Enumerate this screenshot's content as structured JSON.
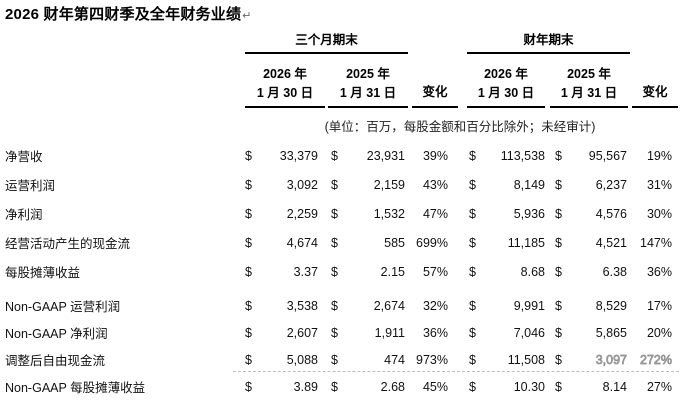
{
  "title": {
    "text": "2026 财年第四财季及全年财务业绩",
    "paragraph_mark": "↵"
  },
  "table": {
    "currency_symbol": "$",
    "header": {
      "group_quarter": "三个月期末",
      "group_fiscal_year": "财年期末",
      "col_q_2026": {
        "year": "2026 年",
        "date": "1 月 30 日"
      },
      "col_q_2025": {
        "year": "2025 年",
        "date": "1 月 31 日"
      },
      "col_fy_2026": {
        "year": "2026 年",
        "date": "1 月 30 日"
      },
      "col_fy_2025": {
        "year": "2025 年",
        "date": "1 月 31 日"
      },
      "change_label": "变化",
      "note": "(单位：百万，每股金额和百分比除外；未经审计)"
    },
    "rows": [
      {
        "label": "净营收",
        "q_2026": "33,379",
        "q_2025": "23,931",
        "q_change": "39%",
        "fy_2026": "113,538",
        "fy_2025": "95,567",
        "fy_change": "19%",
        "section": "gaap"
      },
      {
        "label": "运营利润",
        "q_2026": "3,092",
        "q_2025": "2,159",
        "q_change": "43%",
        "fy_2026": "8,149",
        "fy_2025": "6,237",
        "fy_change": "31%",
        "section": "gaap"
      },
      {
        "label": "净利润",
        "q_2026": "2,259",
        "q_2025": "1,532",
        "q_change": "47%",
        "fy_2026": "5,936",
        "fy_2025": "4,576",
        "fy_change": "30%",
        "section": "gaap"
      },
      {
        "label": "经营活动产生的现金流",
        "q_2026": "4,674",
        "q_2025": "585",
        "q_change": "699%",
        "fy_2026": "11,185",
        "fy_2025": "4,521",
        "fy_change": "147%",
        "section": "gaap"
      },
      {
        "label": "每股摊薄收益",
        "q_2026": "3.37",
        "q_2025": "2.15",
        "q_change": "57%",
        "fy_2026": "8.68",
        "fy_2025": "6.38",
        "fy_change": "36%",
        "section": "gaap"
      },
      {
        "label": "Non-GAAP 运营利润",
        "q_2026": "3,538",
        "q_2025": "2,674",
        "q_change": "32%",
        "fy_2026": "9,991",
        "fy_2025": "8,529",
        "fy_change": "17%",
        "section": "nongaap",
        "spacer_before": true
      },
      {
        "label": "Non-GAAP 净利润",
        "q_2026": "2,607",
        "q_2025": "1,911",
        "q_change": "36%",
        "fy_2026": "7,046",
        "fy_2025": "5,865",
        "fy_change": "20%",
        "section": "nongaap"
      },
      {
        "label": "调整后自由现金流",
        "q_2026": "5,088",
        "q_2025": "474",
        "q_change": "973%",
        "fy_2026": "11,508",
        "fy_2025": "3,097",
        "fy_change": "272%",
        "section": "nongaap",
        "faded": [
          "fy_2025",
          "fy_change"
        ]
      },
      {
        "label": "Non-GAAP 每股摊薄收益",
        "q_2026": "3.89",
        "q_2025": "2.68",
        "q_change": "45%",
        "fy_2026": "10.30",
        "fy_2025": "8.14",
        "fy_change": "27%",
        "section": "nongaap"
      }
    ]
  }
}
